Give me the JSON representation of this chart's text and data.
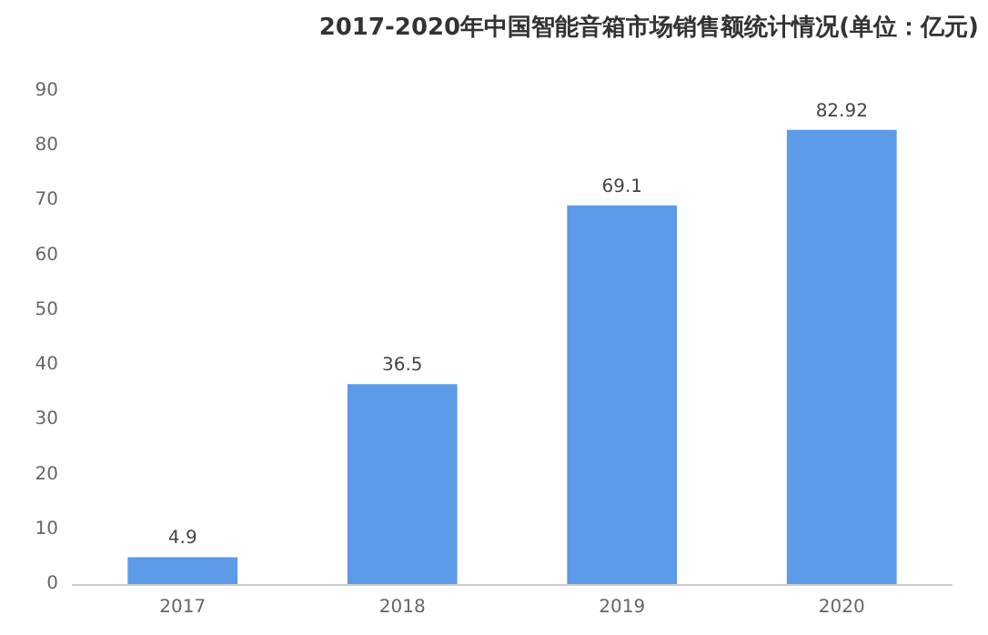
{
  "chart_data": {
    "type": "bar",
    "title": "2017-2020年中国智能音箱市场销售额统计情况(单位：亿元)",
    "categories": [
      "2017",
      "2018",
      "2019",
      "2020"
    ],
    "values": [
      4.9,
      36.5,
      69.1,
      82.92
    ],
    "color": "#5b9be8",
    "ylim": [
      0,
      90
    ],
    "yticks": [
      0,
      10,
      20,
      30,
      40,
      50,
      60,
      70,
      80,
      90
    ],
    "grid": false,
    "data_labels": true
  }
}
